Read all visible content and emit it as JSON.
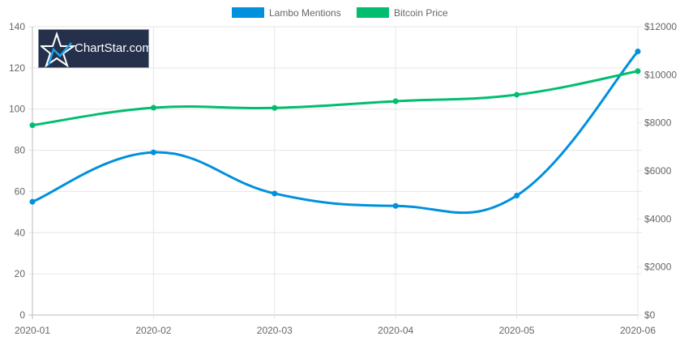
{
  "chart_data": {
    "type": "line",
    "categories": [
      "2020-01",
      "2020-02",
      "2020-03",
      "2020-04",
      "2020-05",
      "2020-06"
    ],
    "series": [
      {
        "name": "Lambo Mentions",
        "axis": "left",
        "color": "#0090dd",
        "values": [
          55,
          79,
          59,
          53,
          58,
          128
        ]
      },
      {
        "name": "Bitcoin Price",
        "axis": "right",
        "color": "#00be6e",
        "values": [
          7900,
          8630,
          8620,
          8900,
          9170,
          10150
        ]
      }
    ],
    "yleft": {
      "range": [
        0,
        140
      ],
      "ticks": [
        "0",
        "20",
        "40",
        "60",
        "80",
        "100",
        "120",
        "140"
      ]
    },
    "yright": {
      "range": [
        0,
        12000
      ],
      "ticks": [
        "$0",
        "$2000",
        "$4000",
        "$6000",
        "$8000",
        "$10000",
        "$12000"
      ]
    },
    "grid": true,
    "legend_position": "top",
    "logo_text": "ChartStar.com"
  }
}
